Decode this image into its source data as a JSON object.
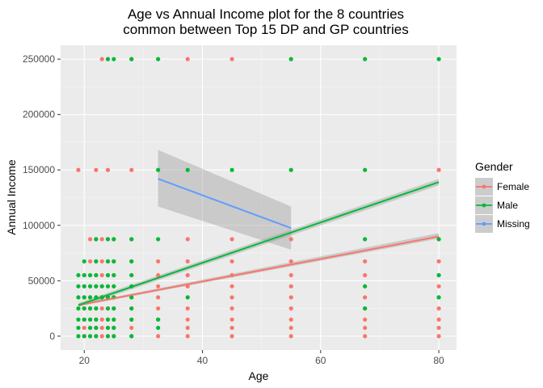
{
  "chart_data": {
    "type": "scatter",
    "title_line1": "Age vs Annual Income plot for the 8 countries",
    "title_line2": "common between Top 15 DP and GP countries",
    "xlabel": "Age",
    "ylabel": "Annual Income",
    "xlim": [
      16,
      83
    ],
    "ylim": [
      -12500,
      262500
    ],
    "x_ticks": [
      20,
      40,
      60,
      80
    ],
    "y_ticks": [
      0,
      50000,
      100000,
      150000,
      200000,
      250000
    ],
    "y_tick_labels": [
      "0",
      "50000",
      "100000",
      "150000",
      "200000",
      "250000"
    ],
    "grid": true,
    "panel_background": "#ebebeb",
    "legend": {
      "title": "Gender",
      "position": "right"
    },
    "series": [
      {
        "name": "Female",
        "color": "#f8766d",
        "points": [
          [
            19,
            150000
          ],
          [
            23,
            250000
          ],
          [
            24,
            250000
          ],
          [
            28,
            250000
          ],
          [
            37.5,
            250000
          ],
          [
            45,
            250000
          ],
          [
            22,
            150000
          ],
          [
            24,
            150000
          ],
          [
            28,
            150000
          ],
          [
            80,
            150000
          ],
          [
            21,
            87500
          ],
          [
            22,
            87500
          ],
          [
            23,
            87500
          ],
          [
            24,
            87500
          ],
          [
            25,
            87500
          ],
          [
            28,
            87500
          ],
          [
            37.5,
            87500
          ],
          [
            45,
            87500
          ],
          [
            55,
            87500
          ],
          [
            80,
            87500
          ],
          [
            21,
            67500
          ],
          [
            22,
            67500
          ],
          [
            23,
            67500
          ],
          [
            24,
            67500
          ],
          [
            25,
            67500
          ],
          [
            28,
            67500
          ],
          [
            32.5,
            67500
          ],
          [
            37.5,
            67500
          ],
          [
            45,
            67500
          ],
          [
            55,
            67500
          ],
          [
            67.5,
            67500
          ],
          [
            80,
            67500
          ],
          [
            20,
            55000
          ],
          [
            21,
            55000
          ],
          [
            22,
            55000
          ],
          [
            23,
            55000
          ],
          [
            24,
            55000
          ],
          [
            25,
            55000
          ],
          [
            28,
            55000
          ],
          [
            32.5,
            55000
          ],
          [
            37.5,
            55000
          ],
          [
            45,
            55000
          ],
          [
            55,
            55000
          ],
          [
            67.5,
            55000
          ],
          [
            80,
            55000
          ],
          [
            20,
            45000
          ],
          [
            21,
            45000
          ],
          [
            22,
            45000
          ],
          [
            23,
            45000
          ],
          [
            24,
            45000
          ],
          [
            25,
            45000
          ],
          [
            28,
            45000
          ],
          [
            32.5,
            45000
          ],
          [
            37.5,
            45000
          ],
          [
            45,
            45000
          ],
          [
            55,
            45000
          ],
          [
            67.5,
            45000
          ],
          [
            80,
            45000
          ],
          [
            20,
            35000
          ],
          [
            21,
            35000
          ],
          [
            22,
            35000
          ],
          [
            23,
            35000
          ],
          [
            24,
            35000
          ],
          [
            25,
            35000
          ],
          [
            28,
            35000
          ],
          [
            32.5,
            35000
          ],
          [
            45,
            35000
          ],
          [
            55,
            35000
          ],
          [
            67.5,
            35000
          ],
          [
            80,
            35000
          ],
          [
            20,
            25000
          ],
          [
            21,
            25000
          ],
          [
            22,
            25000
          ],
          [
            23,
            25000
          ],
          [
            24,
            25000
          ],
          [
            25,
            25000
          ],
          [
            28,
            25000
          ],
          [
            32.5,
            25000
          ],
          [
            37.5,
            25000
          ],
          [
            45,
            25000
          ],
          [
            55,
            25000
          ],
          [
            67.5,
            25000
          ],
          [
            80,
            25000
          ],
          [
            20,
            15000
          ],
          [
            21,
            15000
          ],
          [
            22,
            15000
          ],
          [
            23,
            15000
          ],
          [
            24,
            15000
          ],
          [
            25,
            15000
          ],
          [
            28,
            15000
          ],
          [
            32.5,
            15000
          ],
          [
            37.5,
            15000
          ],
          [
            45,
            15000
          ],
          [
            55,
            15000
          ],
          [
            67.5,
            15000
          ],
          [
            80,
            15000
          ],
          [
            20,
            7500
          ],
          [
            21,
            7500
          ],
          [
            22,
            7500
          ],
          [
            23,
            7500
          ],
          [
            24,
            7500
          ],
          [
            25,
            7500
          ],
          [
            28,
            7500
          ],
          [
            37.5,
            7500
          ],
          [
            45,
            7500
          ],
          [
            55,
            7500
          ],
          [
            67.5,
            7500
          ],
          [
            80,
            7500
          ],
          [
            20,
            0
          ],
          [
            21,
            0
          ],
          [
            22,
            0
          ],
          [
            23,
            0
          ],
          [
            24,
            0
          ],
          [
            25,
            0
          ],
          [
            28,
            0
          ],
          [
            32.5,
            0
          ],
          [
            37.5,
            0
          ],
          [
            45,
            0
          ],
          [
            55,
            0
          ],
          [
            67.5,
            0
          ],
          [
            80,
            0
          ]
        ],
        "trend": {
          "x0": 19,
          "y0": 28000,
          "x1": 80,
          "y1": 90000,
          "se_lo": [
            27000,
            88000
          ],
          "se_hi": [
            29000,
            93000
          ]
        }
      },
      {
        "name": "Male",
        "color": "#00ba38",
        "points": [
          [
            24,
            250000
          ],
          [
            25,
            250000
          ],
          [
            28,
            250000
          ],
          [
            32.5,
            250000
          ],
          [
            55,
            250000
          ],
          [
            67.5,
            250000
          ],
          [
            80,
            250000
          ],
          [
            32.5,
            150000
          ],
          [
            37.5,
            150000
          ],
          [
            45,
            150000
          ],
          [
            55,
            150000
          ],
          [
            67.5,
            150000
          ],
          [
            22,
            87500
          ],
          [
            24,
            87500
          ],
          [
            25,
            87500
          ],
          [
            28,
            87500
          ],
          [
            32.5,
            87500
          ],
          [
            67.5,
            87500
          ],
          [
            80,
            87500
          ],
          [
            20,
            67500
          ],
          [
            22,
            67500
          ],
          [
            24,
            67500
          ],
          [
            25,
            67500
          ],
          [
            28,
            67500
          ],
          [
            19,
            55000
          ],
          [
            20,
            55000
          ],
          [
            21,
            55000
          ],
          [
            22,
            55000
          ],
          [
            24,
            55000
          ],
          [
            25,
            55000
          ],
          [
            28,
            55000
          ],
          [
            80,
            55000
          ],
          [
            19,
            45000
          ],
          [
            20,
            45000
          ],
          [
            21,
            45000
          ],
          [
            22,
            45000
          ],
          [
            23,
            45000
          ],
          [
            24,
            45000
          ],
          [
            25,
            45000
          ],
          [
            28,
            45000
          ],
          [
            67.5,
            45000
          ],
          [
            19,
            35000
          ],
          [
            20,
            35000
          ],
          [
            21,
            35000
          ],
          [
            22,
            35000
          ],
          [
            23,
            35000
          ],
          [
            24,
            35000
          ],
          [
            25,
            35000
          ],
          [
            28,
            35000
          ],
          [
            37.5,
            35000
          ],
          [
            80,
            35000
          ],
          [
            19,
            25000
          ],
          [
            20,
            25000
          ],
          [
            21,
            25000
          ],
          [
            22,
            25000
          ],
          [
            24,
            25000
          ],
          [
            25,
            25000
          ],
          [
            28,
            25000
          ],
          [
            67.5,
            25000
          ],
          [
            19,
            15000
          ],
          [
            20,
            15000
          ],
          [
            21,
            15000
          ],
          [
            22,
            15000
          ],
          [
            24,
            15000
          ],
          [
            25,
            15000
          ],
          [
            28,
            15000
          ],
          [
            32.5,
            15000
          ],
          [
            19,
            7500
          ],
          [
            21,
            7500
          ],
          [
            22,
            7500
          ],
          [
            24,
            7500
          ],
          [
            25,
            7500
          ],
          [
            32.5,
            7500
          ],
          [
            19,
            0
          ],
          [
            20,
            0
          ],
          [
            21,
            0
          ],
          [
            22,
            0
          ],
          [
            24,
            0
          ],
          [
            25,
            0
          ],
          [
            28,
            0
          ]
        ],
        "trend": {
          "x0": 19,
          "y0": 28000,
          "x1": 80,
          "y1": 139000,
          "se_lo": [
            26000,
            136000
          ],
          "se_hi": [
            30000,
            142000
          ]
        }
      },
      {
        "name": "Missing",
        "color": "#619cff",
        "points": [],
        "trend": {
          "x0": 32.5,
          "y0": 142000,
          "x1": 55,
          "y1": 97500,
          "se_lo": [
            117000,
            78000
          ],
          "se_hi": [
            168000,
            117000
          ]
        }
      }
    ]
  }
}
